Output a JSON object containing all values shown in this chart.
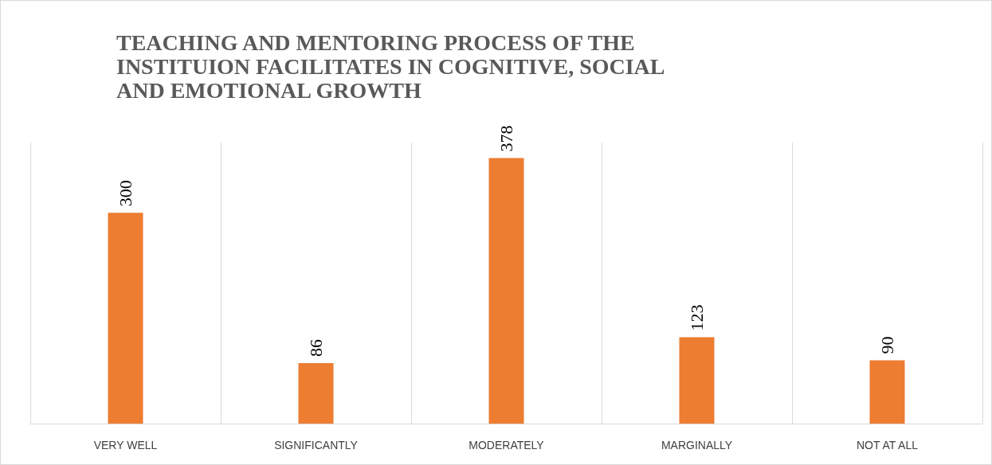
{
  "chart_data": {
    "type": "bar",
    "title": "TEACHING AND MENTORING PROCESS OF THE INSTITUION FACILITATES IN COGNITIVE, SOCIAL AND EMOTIONAL GROWTH",
    "categories": [
      "VERY WELL",
      "SIGNIFICANTLY",
      "MODERATELY",
      "MARGINALLY",
      "NOT AT ALL"
    ],
    "values": [
      300,
      86,
      378,
      123,
      90
    ],
    "color": "#ed7d31",
    "data_labels": true,
    "grid": "x"
  }
}
